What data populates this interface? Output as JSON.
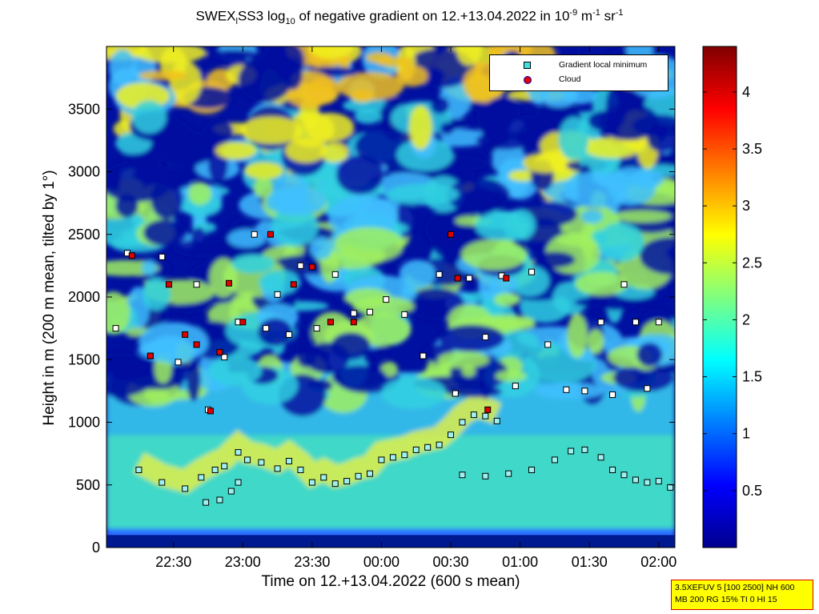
{
  "title": {
    "prefix": "SWEX",
    "sub1": "l",
    "part2": "SS3 log",
    "sub2": "10",
    "part3": " of negative gradient on 12.+13.04.2022 in 10",
    "sup1": "-9",
    "part4": " m",
    "sup2": "-1",
    "part5": " sr",
    "sup3": "-1"
  },
  "infobox": {
    "line1": "3.5XEFUV 5 [100 2500] NH 600",
    "line2": "MB 200 RG 15% TI 0 HI 15"
  },
  "chart_data": {
    "type": "heatmap",
    "xlabel": "Time on 12.+13.04.2022 (600 s mean)",
    "ylabel": "Height in m (200 m mean, tilted by 1°)",
    "x_tick_labels": [
      "22:30",
      "23:00",
      "23:30",
      "00:00",
      "00:30",
      "01:00",
      "01:30",
      "02:00"
    ],
    "x_tick_minutes": [
      -90,
      -60,
      -30,
      0,
      30,
      60,
      90,
      120
    ],
    "xlim_minutes": [
      -119,
      127
    ],
    "y_ticks": [
      0,
      500,
      1000,
      1500,
      2000,
      2500,
      3000,
      3500
    ],
    "ylim": [
      0,
      4000
    ],
    "colorbar": {
      "range": [
        0,
        4.4
      ],
      "ticks": [
        0.5,
        1,
        1.5,
        2,
        2.5,
        3,
        3.5,
        4
      ],
      "tick_labels": [
        "0.5",
        "1",
        "1.5",
        "2",
        "2.5",
        "3",
        "3.5",
        "4"
      ],
      "colormap": "jet"
    },
    "legend": {
      "placement": "top-right",
      "entries": [
        {
          "label": "Gradient local minimum",
          "marker": "square",
          "color": "#40e0e0"
        },
        {
          "label": "Cloud",
          "marker": "circle",
          "color": "#e00000"
        }
      ]
    },
    "series": [
      {
        "name": "Gradient local minimum (lower layer)",
        "x": [
          -105,
          -95,
          -85,
          -78,
          -72,
          -68,
          -62,
          -58,
          -52,
          -45,
          -40,
          -35,
          -30,
          -25,
          -20,
          -15,
          -10,
          -5,
          0,
          5,
          10,
          15,
          20,
          25,
          30,
          35,
          40,
          45,
          50
        ],
        "y": [
          620,
          520,
          470,
          560,
          620,
          650,
          760,
          700,
          680,
          630,
          690,
          620,
          520,
          560,
          510,
          530,
          570,
          590,
          700,
          720,
          740,
          780,
          800,
          820,
          900,
          1000,
          1060,
          1050,
          1010
        ]
      },
      {
        "name": "Gradient local minimum (lower layer, second branch)",
        "x": [
          -76,
          -70,
          -65,
          -62,
          35,
          45,
          55,
          65,
          75,
          82,
          88,
          95,
          100,
          105,
          110,
          115,
          120,
          125
        ],
        "y": [
          360,
          380,
          450,
          520,
          580,
          570,
          590,
          620,
          700,
          770,
          780,
          720,
          620,
          580,
          540,
          520,
          530,
          480
        ]
      },
      {
        "name": "Gradient local minimum (upper points)",
        "x": [
          -115,
          -110,
          -100,
          -95,
          -88,
          -80,
          -75,
          -68,
          -62,
          -55,
          -50,
          -45,
          -40,
          -35,
          -28,
          -20,
          -12,
          -5,
          2,
          10,
          18,
          25,
          32,
          38,
          45,
          52,
          58,
          65,
          72,
          80,
          88,
          95,
          100,
          105,
          110,
          115,
          120
        ],
        "y": [
          1750,
          2350,
          1530,
          2320,
          1480,
          2100,
          1100,
          1520,
          1800,
          2500,
          1750,
          2020,
          1700,
          2250,
          1750,
          2180,
          1870,
          1880,
          1980,
          1860,
          1530,
          2180,
          1230,
          2150,
          1680,
          2170,
          1290,
          2200,
          1620,
          1260,
          1250,
          1800,
          1220,
          2100,
          1800,
          1270,
          1800
        ]
      },
      {
        "name": "Cloud",
        "x": [
          -108,
          -100,
          -92,
          -85,
          -80,
          -74,
          -70,
          -66,
          -60,
          -48,
          -38,
          -30,
          -22,
          -12,
          30,
          33,
          46,
          54
        ],
        "y": [
          2330,
          1530,
          2100,
          1700,
          1620,
          1090,
          1560,
          2110,
          1800,
          2500,
          2100,
          2240,
          1800,
          1800,
          2500,
          2150,
          1100,
          2150
        ]
      }
    ]
  }
}
